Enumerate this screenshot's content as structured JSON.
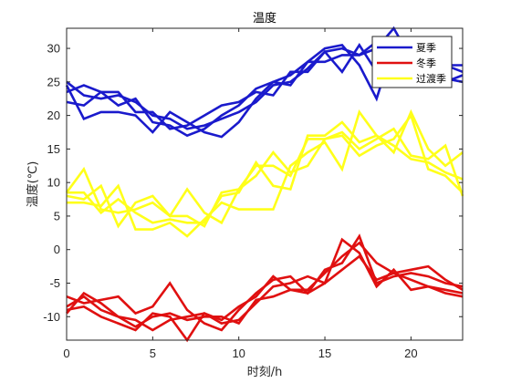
{
  "chart_data": {
    "type": "line",
    "title": "温度",
    "xlabel": "时刻/h",
    "ylabel": "温度(℃)",
    "xlim": [
      0,
      23
    ],
    "ylim": [
      -13.5,
      33
    ],
    "xticks": [
      0,
      5,
      10,
      15,
      20
    ],
    "yticks": [
      -10,
      -5,
      0,
      5,
      10,
      15,
      20,
      25,
      30
    ],
    "grid": false,
    "legend_position": "top-right",
    "legend": [
      {
        "label": "夏季",
        "color": "#1a1acc"
      },
      {
        "label": "冬季",
        "color": "#e01010"
      },
      {
        "label": "过渡季",
        "color": "#ffff1a"
      }
    ],
    "groups": [
      {
        "name": "夏季",
        "color": "#1a1acc",
        "lines": [
          [
            25.0,
            23.0,
            22.5,
            23.0,
            22.0,
            20.0,
            19.5,
            18.0,
            18.5,
            19.5,
            20.5,
            22.0,
            24.5,
            25.0,
            27.0,
            29.5,
            30.0,
            29.0,
            31.0,
            30.0,
            29.0,
            28.0,
            27.5,
            26.5
          ],
          [
            23.5,
            24.5,
            23.5,
            21.5,
            22.5,
            19.0,
            18.5,
            17.0,
            18.0,
            20.0,
            21.5,
            24.0,
            25.0,
            26.0,
            28.0,
            30.0,
            30.5,
            27.5,
            22.5,
            30.5,
            28.0,
            27.0,
            25.5,
            25.0
          ],
          [
            24.5,
            19.5,
            20.5,
            20.5,
            20.0,
            17.5,
            20.5,
            19.0,
            17.5,
            16.8,
            19.0,
            22.5,
            25.0,
            24.5,
            28.0,
            28.0,
            29.0,
            29.0,
            30.0,
            33.0,
            28.5,
            26.0,
            27.5,
            27.5
          ],
          [
            22.0,
            21.5,
            23.5,
            23.5,
            20.5,
            20.5,
            18.0,
            18.5,
            20.0,
            21.5,
            22.0,
            23.5,
            23.0,
            26.5,
            26.5,
            29.5,
            26.5,
            30.5,
            26.5,
            29.0,
            28.5,
            29.0,
            25.0,
            26.0
          ]
        ]
      },
      {
        "name": "冬季",
        "color": "#e01010",
        "lines": [
          [
            -8.5,
            -7.0,
            -9.0,
            -10.0,
            -11.5,
            -10.0,
            -9.5,
            -10.5,
            -10.0,
            -10.0,
            -11.0,
            -7.5,
            -7.0,
            -6.0,
            -6.0,
            -3.5,
            -1.0,
            1.0,
            -2.0,
            -3.5,
            -4.5,
            -5.5,
            -6.0,
            -6.5
          ],
          [
            -7.0,
            -8.0,
            -7.5,
            -7.0,
            -9.5,
            -8.5,
            -5.0,
            -9.0,
            -11.0,
            -12.0,
            -9.0,
            -6.5,
            -4.5,
            -4.0,
            -6.5,
            -3.0,
            -2.0,
            2.0,
            -5.0,
            -4.0,
            -3.5,
            -4.0,
            -5.0,
            -5.5
          ],
          [
            -9.5,
            -6.5,
            -8.0,
            -10.0,
            -10.5,
            -12.0,
            -10.5,
            -10.0,
            -9.5,
            -11.0,
            -10.5,
            -8.0,
            -5.5,
            -5.0,
            -4.0,
            -5.0,
            1.5,
            -0.5,
            -5.5,
            -3.0,
            -6.0,
            -5.5,
            -6.5,
            -7.0
          ],
          [
            -9.0,
            -8.5,
            -10.0,
            -11.0,
            -12.0,
            -9.5,
            -10.0,
            -13.5,
            -9.5,
            -10.5,
            -8.5,
            -7.0,
            -4.0,
            -6.0,
            -6.5,
            -5.0,
            -3.0,
            -1.0,
            -4.5,
            -3.5,
            -3.0,
            -2.5,
            -4.5,
            -6.0
          ]
        ]
      },
      {
        "name": "过渡季",
        "color": "#ffff1a",
        "lines": [
          [
            8.5,
            12.0,
            6.0,
            5.5,
            6.0,
            7.0,
            5.0,
            9.0,
            5.5,
            4.0,
            9.0,
            12.5,
            12.5,
            11.0,
            16.5,
            16.5,
            17.5,
            15.0,
            16.5,
            18.0,
            14.0,
            13.5,
            15.5,
            8.0
          ],
          [
            8.0,
            7.5,
            9.5,
            3.5,
            7.0,
            8.0,
            5.0,
            5.0,
            3.5,
            8.5,
            9.0,
            11.0,
            14.5,
            11.5,
            12.5,
            16.5,
            17.0,
            14.0,
            15.5,
            16.5,
            20.0,
            12.0,
            11.0,
            8.5
          ],
          [
            7.0,
            7.0,
            6.5,
            9.5,
            3.0,
            3.0,
            4.0,
            2.0,
            4.5,
            7.0,
            6.0,
            6.0,
            6.0,
            12.5,
            14.5,
            16.0,
            12.0,
            20.5,
            17.0,
            15.5,
            13.5,
            13.0,
            11.5,
            10.5
          ],
          [
            8.5,
            8.5,
            5.5,
            7.5,
            5.5,
            4.0,
            4.5,
            4.0,
            4.0,
            8.0,
            8.5,
            13.0,
            9.5,
            9.0,
            17.0,
            17.0,
            19.0,
            16.0,
            17.0,
            14.5,
            20.5,
            15.0,
            12.5,
            14.5
          ]
        ]
      }
    ]
  }
}
